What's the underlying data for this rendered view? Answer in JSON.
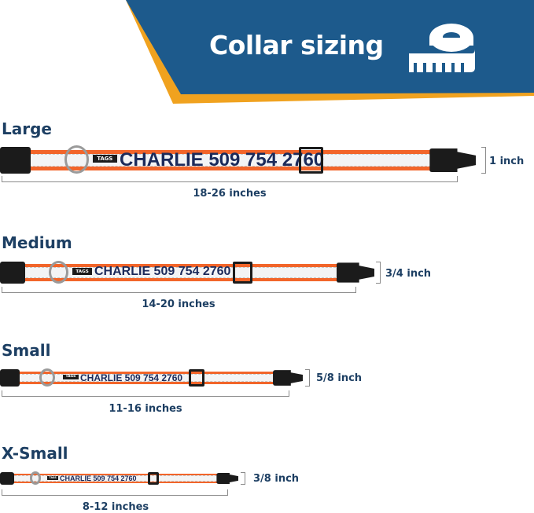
{
  "header": {
    "title": "Collar sizing",
    "icon": "measuring-tape-icon",
    "colors": {
      "banner": "#1d5a8c",
      "accent": "#f0a21f"
    }
  },
  "collar_text": {
    "name": "CHARLIE 509 754 2760",
    "tag": "TAGS"
  },
  "colors": {
    "strap": "#f2652a",
    "reflective": "#f3f4f5",
    "hardware": "#1b1b1b"
  },
  "sizes": [
    {
      "label": "Large",
      "length": "18-26 inches",
      "width": "1 inch"
    },
    {
      "label": "Medium",
      "length": "14-20 inches",
      "width": "3/4 inch"
    },
    {
      "label": "Small",
      "length": "11-16 inches",
      "width": "5/8 inch"
    },
    {
      "label": "X-Small",
      "length": "8-12 inches",
      "width": "3/8 inch"
    }
  ]
}
